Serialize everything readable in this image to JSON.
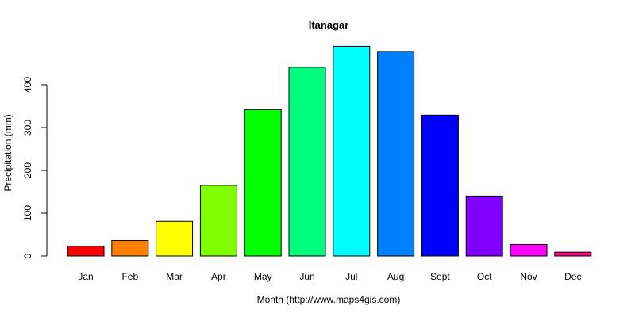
{
  "chart_data": {
    "type": "bar",
    "title": "Itanagar",
    "xlabel": "Month (http://www.maps4gis.com)",
    "ylabel": "Precipitation (mm)",
    "categories": [
      "Jan",
      "Feb",
      "Mar",
      "Apr",
      "May",
      "Jun",
      "Jul",
      "Aug",
      "Sept",
      "Oct",
      "Nov",
      "Dec"
    ],
    "values": [
      23,
      36,
      81,
      165,
      342,
      441,
      490,
      478,
      329,
      140,
      27,
      9
    ],
    "colors": [
      "#FF0000",
      "#FF8000",
      "#FFFF00",
      "#80FF00",
      "#00FF00",
      "#00FF80",
      "#00FFFF",
      "#0080FF",
      "#0000FF",
      "#8000FF",
      "#FF00FF",
      "#FF0080"
    ],
    "yticks": [
      0,
      100,
      200,
      300,
      400
    ],
    "ylim": [
      0,
      490
    ],
    "grid": false,
    "legend": "none"
  }
}
